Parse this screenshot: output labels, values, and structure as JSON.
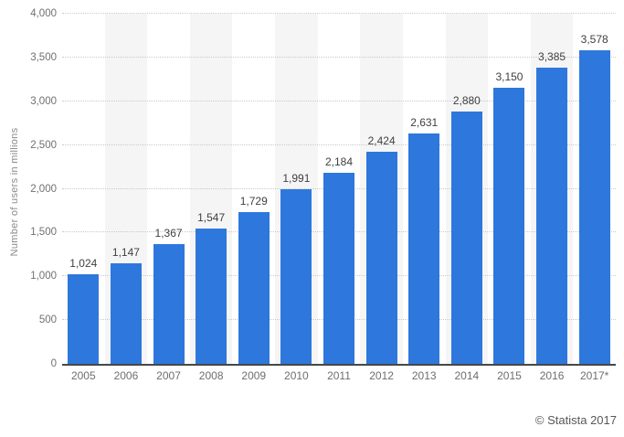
{
  "chart_data": {
    "type": "bar",
    "title": "",
    "xlabel": "",
    "ylabel": "Number of users in millions",
    "categories": [
      "2005",
      "2006",
      "2007",
      "2008",
      "2009",
      "2010",
      "2011",
      "2012",
      "2013",
      "2014",
      "2015",
      "2016",
      "2017*"
    ],
    "values": [
      1024,
      1147,
      1367,
      1547,
      1729,
      1991,
      2184,
      2424,
      2631,
      2880,
      3150,
      3385,
      3578
    ],
    "value_labels": [
      "1,024",
      "1,147",
      "1,367",
      "1,547",
      "1,729",
      "1,991",
      "2,184",
      "2,424",
      "2,631",
      "2,880",
      "3,150",
      "3,385",
      "3,578"
    ],
    "ylim": [
      0,
      4000
    ],
    "yticks": [
      {
        "v": 0,
        "label": "0"
      },
      {
        "v": 500,
        "label": "500"
      },
      {
        "v": 1000,
        "label": "1,000"
      },
      {
        "v": 1500,
        "label": "1,500"
      },
      {
        "v": 2000,
        "label": "2,000"
      },
      {
        "v": 2500,
        "label": "2,500"
      },
      {
        "v": 3000,
        "label": "3,000"
      },
      {
        "v": 3500,
        "label": "3,500"
      },
      {
        "v": 4000,
        "label": "4,000"
      }
    ],
    "grid": "horizontal-dotted",
    "legend": "none",
    "colors": {
      "bar": "#2e77dc",
      "alt_column_band": "#f5f5f5",
      "gridline": "#c9c9c9",
      "axis_line": "#474747",
      "tick_text": "#707070",
      "value_label_text": "#3f3f3f",
      "ylabel_text": "#8a8a8a",
      "copyright_text": "#58585a"
    }
  },
  "footer": {
    "copyright": "© Statista 2017"
  }
}
